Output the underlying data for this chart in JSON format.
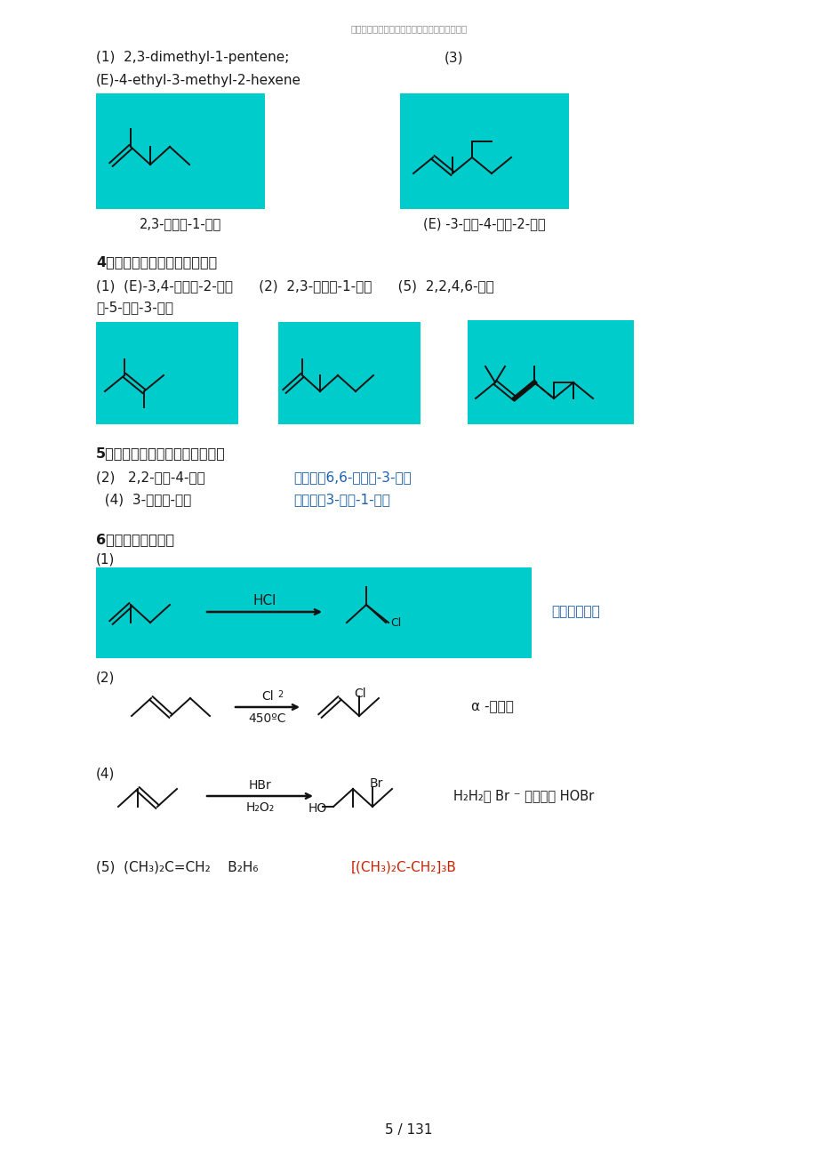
{
  "page_bg": "#ffffff",
  "cyan": "#00CCCC",
  "watermark": "如果您需要使用本文档，请点击下载按鈕下载！",
  "line1a": "(1)  2,3-dimethyl-1-pentene;",
  "line1b": "(3)",
  "line2": "(E)-4-ethyl-3-methyl-2-hexene",
  "label1": "2,3-二甲基-1-戚烯",
  "label2": "(E) -3-甲基-4-乙基-2-己烯",
  "sec4_title": "4、写出下列化合物的构造式。",
  "sec4_line1": "(1)  (E)-3,4-二甲基-2-戚烯      (2)  2,3-二甲基-1-己烯      (5)  2,2,4,6-四甲",
  "sec4_line2": "基-5-乙基-3-庚烯",
  "sec5_title": "5、对下列错误的命名给予更正：",
  "s5_2_black": "(2)   2,2-甲基-4-庚烯",
  "s5_2_blue": "应改为：6,6-二甲基-3-庚烯",
  "s5_4_black": "  (4)  3-乙烯基-戚烷",
  "s5_4_blue": "应改为：3-乙基-1-戚烯",
  "sec6_title": "6、完成下列反应式",
  "s6_1": "(1)",
  "s6_hcl": "HCl",
  "s6_cl": "Cl",
  "s6_markov": "马氏方向加成",
  "s6_2": "(2)",
  "s6_cl2": "Cl",
  "s6_cl2_sub": "2",
  "s6_temp": "450",
  "s6_cl_label": "Cl",
  "s6_alpha": "α -氮取代",
  "s6_4": "(4)",
  "s6_hbr": "HBr",
  "s6_h2o2": "H",
  "s6_h2o2_rest": "₂O₂",
  "s6_br_label": "Br",
  "s6_ho_label": "HO",
  "s6_perox": "H₂H₂将 Br ⁻ 氧化成了 HOBr",
  "s6_5_black": "(5)  (CH₃)₂C=CH₂    B₂H₆",
  "s6_5_red": "[(CH₃)₂C-CH₂]₃B",
  "page_num": "5 / 131",
  "tc": "#1a1a1a",
  "blue": "#1a5fa8",
  "red": "#cc2200",
  "gray": "#888888",
  "lc": "#111111",
  "lw": 1.4
}
